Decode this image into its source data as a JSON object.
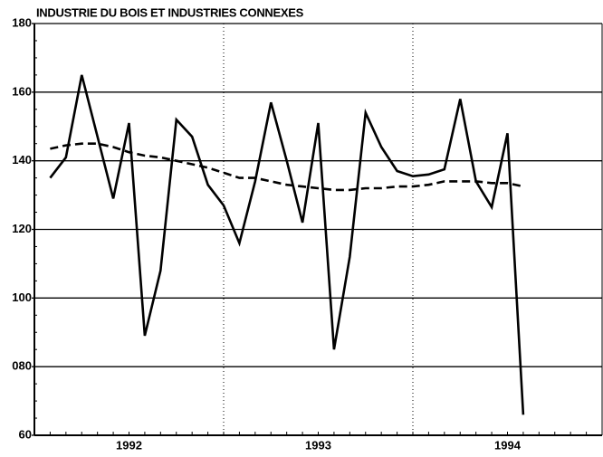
{
  "chart_data": {
    "type": "line",
    "title": "INDUSTRIE DU BOIS ET INDUSTRIES CONNEXES",
    "categories": [
      null,
      null,
      null,
      null,
      null,
      null,
      "1992",
      null,
      null,
      null,
      null,
      null,
      null,
      null,
      null,
      null,
      null,
      null,
      "1993",
      null,
      null,
      null,
      null,
      null,
      null,
      null,
      null,
      null,
      null,
      null,
      "1994",
      null,
      null,
      null,
      null,
      null
    ],
    "series": [
      {
        "color": "#000000",
        "style": "solid",
        "values": [
          135,
          141,
          165,
          147,
          129,
          151,
          89,
          108,
          152,
          147,
          133,
          127,
          116,
          134,
          157,
          140,
          122,
          151,
          85,
          112,
          154,
          144,
          137,
          135.5,
          136,
          137.5,
          158,
          134,
          126.5,
          148,
          66,
          null,
          null,
          null,
          null,
          null
        ]
      },
      {
        "color": "#000000",
        "style": "dashed",
        "values": [
          143.5,
          144.5,
          145,
          145,
          144,
          142.5,
          141.5,
          141,
          140,
          139,
          138,
          136.5,
          135,
          135,
          134,
          133,
          132.5,
          132,
          131.5,
          131.5,
          132,
          132,
          132.5,
          132.5,
          133,
          134,
          134,
          134,
          133.5,
          133.5,
          132.5,
          null,
          null,
          null,
          null,
          null
        ]
      }
    ],
    "ylim": [
      60,
      180
    ],
    "yticks": [
      60,
      {
        "value": 80,
        "label": "080"
      },
      100,
      120,
      140,
      160,
      180
    ],
    "grid": true,
    "year_dividers": true
  }
}
